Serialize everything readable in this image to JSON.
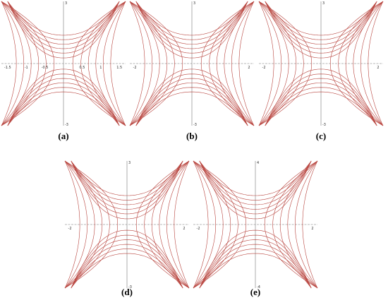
{
  "panels": [
    {
      "label": "(a)",
      "x_ticks": [
        "-1.5",
        "-1",
        "-0.5",
        "0.5",
        "1",
        "1.5"
      ],
      "y_ticks": [
        "3",
        "-3"
      ]
    },
    {
      "label": "(b)",
      "x_ticks": [
        "-2",
        "2"
      ],
      "y_ticks": [
        "3",
        "-3"
      ]
    },
    {
      "label": "(c)",
      "x_ticks": [
        "-2",
        "2"
      ],
      "y_ticks": [
        "3",
        "-3"
      ]
    },
    {
      "label": "(d)",
      "x_ticks": [
        "-2",
        "2"
      ],
      "y_ticks": [
        "3",
        "-3"
      ]
    },
    {
      "label": "(e)",
      "x_ticks": [
        "-2",
        "2"
      ],
      "y_ticks": [
        "4",
        "-4"
      ]
    }
  ]
}
